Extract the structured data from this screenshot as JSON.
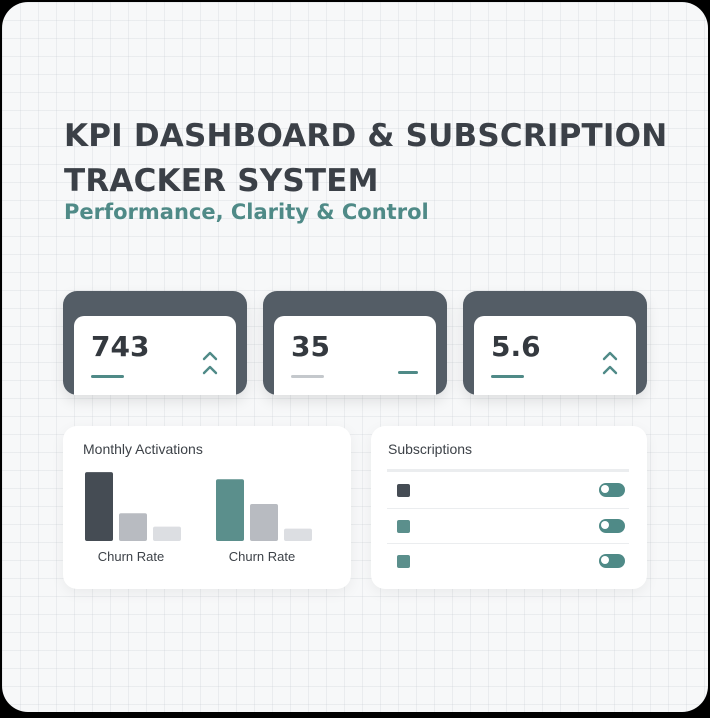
{
  "header": {
    "title": "KPI DASHBOARD & SUBSCRIPTION TRACKER SYSTEM",
    "subtitle": "Performance, Clarity & Control"
  },
  "kpis": [
    {
      "value": "743",
      "indicator": "up-chevron-icon",
      "underline_color": "#4f8a87"
    },
    {
      "value": "35",
      "indicator": "flat-dash-icon",
      "underline_color": "#c4c8cc"
    },
    {
      "value": "5.6",
      "indicator": "up-chevron-icon",
      "underline_color": "#4f8a87"
    }
  ],
  "activations": {
    "title": "Monthly Activations"
  },
  "chart_data": {
    "type": "bar",
    "title": "Monthly Activations",
    "categories": [
      "Churn Rate",
      "Churn Rate"
    ],
    "series": [
      {
        "values": [
          67,
          60
        ]
      },
      {
        "values": [
          27,
          36
        ]
      },
      {
        "values": [
          14,
          12
        ]
      }
    ],
    "ylim": [
      0,
      70
    ],
    "grid": false,
    "colors": [
      [
        "#454c54",
        "#b8bbc1",
        "#dcdee2"
      ],
      [
        "#5b8f8c",
        "#b8bbc1",
        "#dcdee2"
      ]
    ]
  },
  "subscriptions": {
    "title": "Subscriptions",
    "rows": [
      {
        "color": "#454c54",
        "toggle_on": true
      },
      {
        "color": "#5b8f8c",
        "toggle_on": true
      },
      {
        "color": "#5b8f8c",
        "toggle_on": true
      }
    ]
  },
  "colors": {
    "accent": "#4f8a87",
    "dark": "#545d66",
    "text": "#3b4047"
  }
}
